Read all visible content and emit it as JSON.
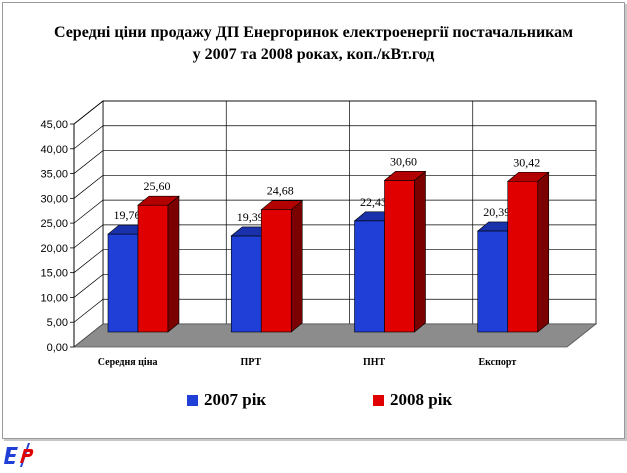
{
  "chart_data": {
    "type": "bar",
    "title_lines": [
      "Середні ціни продажу ДП Енергоринок електроенергії постачальникам",
      "у 2007 та 2008 роках, коп./кВт.год"
    ],
    "categories": [
      "Середня ціна",
      "ПРТ",
      "ПНТ",
      "Експорт"
    ],
    "series": [
      {
        "name": "2007 рік",
        "color": "#1f3fd6",
        "values": [
          19.76,
          19.39,
          22.43,
          20.39
        ],
        "labels": [
          "19,76",
          "19,39",
          "22,43",
          "20,39"
        ]
      },
      {
        "name": "2008 рік",
        "color": "#e00000",
        "values": [
          25.6,
          24.68,
          30.6,
          30.42
        ],
        "labels": [
          "25,60",
          "24,68",
          "30,60",
          "30,42"
        ]
      }
    ],
    "y_ticks": [
      "0,00",
      "5,00",
      "10,00",
      "15,00",
      "20,00",
      "25,00",
      "30,00",
      "35,00",
      "40,00",
      "45,00"
    ],
    "ylim": [
      0,
      45
    ],
    "y_step": 5,
    "grid": true,
    "legend_position": "bottom",
    "three_d": true
  }
}
